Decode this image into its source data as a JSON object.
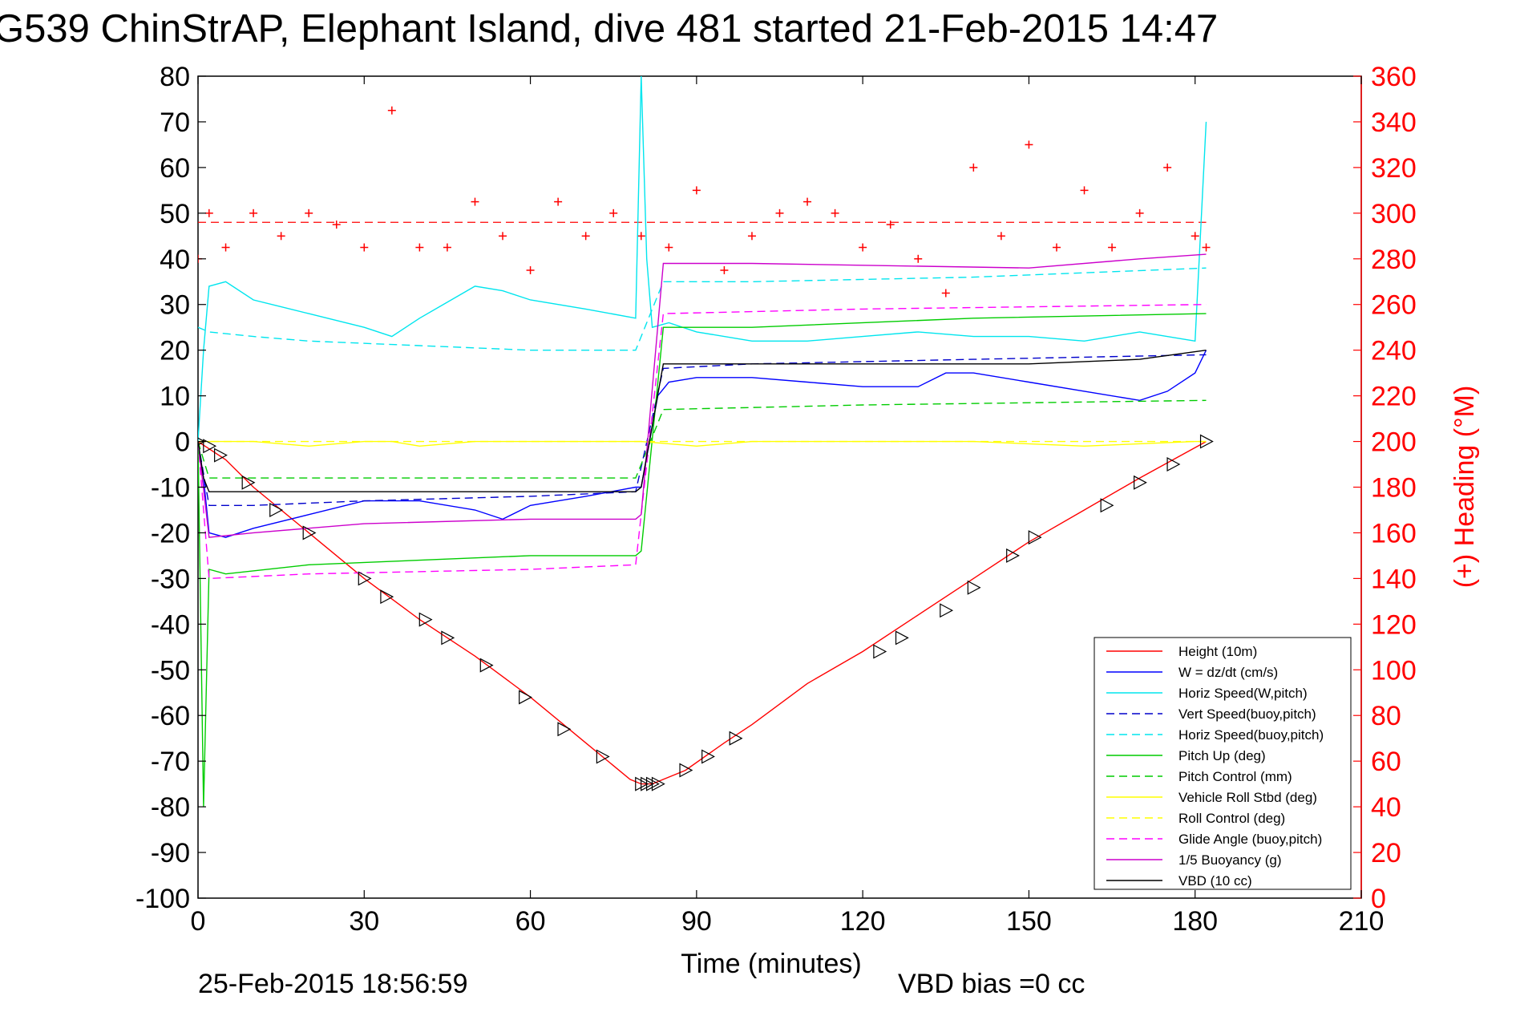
{
  "chart_data": {
    "type": "line",
    "title": "G539 ChinStrAP, Elephant Island, dive 481 started 21-Feb-2015 14:47",
    "xlabel": "Time (minutes)",
    "ylabel_right": "(+) Heading (°M)",
    "xlim": [
      0,
      210
    ],
    "ylim_left": [
      -100,
      80
    ],
    "ylim_right": [
      0,
      360
    ],
    "x_ticks": [
      0,
      30,
      60,
      90,
      120,
      150,
      180,
      210
    ],
    "y_ticks_left": [
      80,
      70,
      60,
      50,
      40,
      30,
      20,
      10,
      0,
      -10,
      -20,
      -30,
      -40,
      -50,
      -60,
      -70,
      -80,
      -90,
      -100
    ],
    "y_ticks_right": [
      360,
      340,
      320,
      300,
      280,
      260,
      240,
      220,
      200,
      180,
      160,
      140,
      120,
      100,
      80,
      60,
      40,
      20,
      0
    ],
    "grid": false,
    "legend_position": "bottom-right",
    "footer_left": "25-Feb-2015 18:56:59",
    "footer_right": "VBD bias =0 cc",
    "series": [
      {
        "name": "Height (10m)",
        "color": "#ff0000",
        "dash": "solid",
        "x": [
          0,
          5,
          10,
          20,
          30,
          40,
          50,
          60,
          70,
          78,
          80,
          82,
          84,
          88,
          95,
          100,
          110,
          120,
          130,
          140,
          150,
          160,
          170,
          182
        ],
        "y": [
          0,
          -4,
          -10,
          -20,
          -30,
          -39,
          -47,
          -56,
          -66,
          -74,
          -75,
          -75,
          -74,
          -72,
          -66,
          -62,
          -53,
          -46,
          -38,
          -30,
          -22,
          -15,
          -8,
          0
        ]
      },
      {
        "name": "W = dz/dt (cm/s)",
        "color": "#0000ff",
        "dash": "solid",
        "x": [
          0,
          1,
          2,
          5,
          10,
          20,
          30,
          40,
          50,
          55,
          60,
          70,
          79,
          80,
          83,
          85,
          90,
          100,
          110,
          120,
          130,
          135,
          140,
          150,
          160,
          170,
          175,
          180,
          182
        ],
        "y": [
          0,
          -8,
          -20,
          -21,
          -19,
          -16,
          -13,
          -13,
          -15,
          -17,
          -14,
          -12,
          -10,
          -10,
          10,
          13,
          14,
          14,
          13,
          12,
          12,
          15,
          15,
          13,
          11,
          9,
          11,
          15,
          20
        ]
      },
      {
        "name": "Horiz Speed(W,pitch)",
        "color": "#00e5ee",
        "dash": "solid",
        "x": [
          0,
          1,
          2,
          5,
          10,
          20,
          30,
          35,
          40,
          50,
          55,
          60,
          70,
          79,
          80,
          81,
          82,
          85,
          90,
          100,
          110,
          120,
          130,
          140,
          150,
          160,
          170,
          180,
          182
        ],
        "y": [
          0,
          20,
          34,
          35,
          31,
          28,
          25,
          23,
          27,
          34,
          33,
          31,
          29,
          27,
          80,
          40,
          25,
          26,
          24,
          22,
          22,
          23,
          24,
          23,
          23,
          22,
          24,
          22,
          70
        ]
      },
      {
        "name": "Vert Speed(buoy,pitch)",
        "color": "#0000cc",
        "dash": "dashed",
        "x": [
          0,
          2,
          10,
          30,
          60,
          79,
          84,
          100,
          140,
          182
        ],
        "y": [
          0,
          -14,
          -14,
          -13,
          -12,
          -11,
          16,
          17,
          18,
          19
        ]
      },
      {
        "name": "Horiz Speed(buoy,pitch)",
        "color": "#00e5ee",
        "dash": "dashed",
        "x": [
          0,
          2,
          10,
          20,
          40,
          60,
          79,
          84,
          100,
          140,
          182
        ],
        "y": [
          25,
          24,
          23,
          22,
          21,
          20,
          20,
          35,
          35,
          36,
          38
        ]
      },
      {
        "name": "Pitch Up (deg)",
        "color": "#00cc00",
        "dash": "solid",
        "x": [
          0,
          1,
          2,
          5,
          20,
          40,
          60,
          79,
          80,
          84,
          100,
          140,
          182
        ],
        "y": [
          0,
          -80,
          -28,
          -29,
          -27,
          -26,
          -25,
          -25,
          -24,
          25,
          25,
          27,
          28
        ]
      },
      {
        "name": "Pitch Control (mm)",
        "color": "#00cc00",
        "dash": "dashed",
        "x": [
          0,
          2,
          79,
          84,
          120,
          182
        ],
        "y": [
          0,
          -8,
          -8,
          7,
          8,
          9
        ]
      },
      {
        "name": "Vehicle Roll Stbd (deg)",
        "color": "#ffff00",
        "dash": "solid",
        "x": [
          0,
          5,
          10,
          20,
          30,
          35,
          40,
          50,
          60,
          70,
          80,
          90,
          100,
          120,
          140,
          160,
          180,
          182
        ],
        "y": [
          0,
          0,
          0,
          -1,
          0,
          0,
          -1,
          0,
          0,
          0,
          0,
          -1,
          0,
          0,
          0,
          -1,
          0,
          0
        ]
      },
      {
        "name": "Roll Control (deg)",
        "color": "#ffff00",
        "dash": "dashed",
        "x": [
          0,
          182
        ],
        "y": [
          0,
          0
        ]
      },
      {
        "name": "Glide Angle (buoy,pitch)",
        "color": "#ff00ff",
        "dash": "dashed",
        "x": [
          0,
          2,
          20,
          60,
          79,
          84,
          120,
          182
        ],
        "y": [
          0,
          -30,
          -29,
          -28,
          -27,
          28,
          29,
          30
        ]
      },
      {
        "name": "1/5 Buoyancy (g)",
        "color": "#cc00cc",
        "dash": "solid",
        "x": [
          0,
          2,
          10,
          30,
          60,
          79,
          80,
          84,
          100,
          150,
          170,
          182
        ],
        "y": [
          0,
          -21,
          -20,
          -18,
          -17,
          -17,
          -16,
          39,
          39,
          38,
          40,
          41
        ]
      },
      {
        "name": "VBD (10 cc)",
        "color": "#000000",
        "dash": "solid",
        "x": [
          0,
          1,
          2,
          79,
          80,
          84,
          150,
          170,
          182
        ],
        "y": [
          0,
          -8,
          -11,
          -11,
          -10,
          17,
          17,
          18,
          20
        ]
      }
    ],
    "heading": {
      "color": "#ff0000",
      "axis": "right",
      "mean": 296,
      "x": [
        0,
        2,
        5,
        10,
        15,
        20,
        25,
        30,
        35,
        40,
        45,
        50,
        55,
        60,
        65,
        70,
        75,
        80,
        85,
        90,
        95,
        100,
        105,
        110,
        115,
        120,
        125,
        130,
        135,
        140,
        145,
        150,
        155,
        160,
        165,
        170,
        175,
        180,
        182
      ],
      "y": [
        280,
        300,
        285,
        300,
        290,
        300,
        295,
        285,
        345,
        285,
        285,
        305,
        290,
        275,
        305,
        290,
        300,
        290,
        285,
        310,
        275,
        290,
        300,
        305,
        300,
        285,
        295,
        280,
        265,
        320,
        290,
        330,
        285,
        310,
        285,
        300,
        320,
        290,
        285
      ]
    },
    "markers": {
      "symbol": "triangle",
      "color": "#000000",
      "x": [
        0,
        2,
        4,
        9,
        14,
        20,
        30,
        34,
        41,
        45,
        52,
        59,
        66,
        73,
        80,
        81,
        82,
        83,
        88,
        92,
        97,
        123,
        127,
        135,
        140,
        147,
        151,
        164,
        170,
        176,
        182
      ],
      "y": [
        0,
        -1,
        -3,
        -9,
        -15,
        -20,
        -30,
        -34,
        -39,
        -43,
        -49,
        -56,
        -63,
        -69,
        -75,
        -75,
        -75,
        -75,
        -72,
        -69,
        -65,
        -46,
        -43,
        -37,
        -32,
        -25,
        -21,
        -14,
        -9,
        -5,
        0
      ]
    }
  }
}
